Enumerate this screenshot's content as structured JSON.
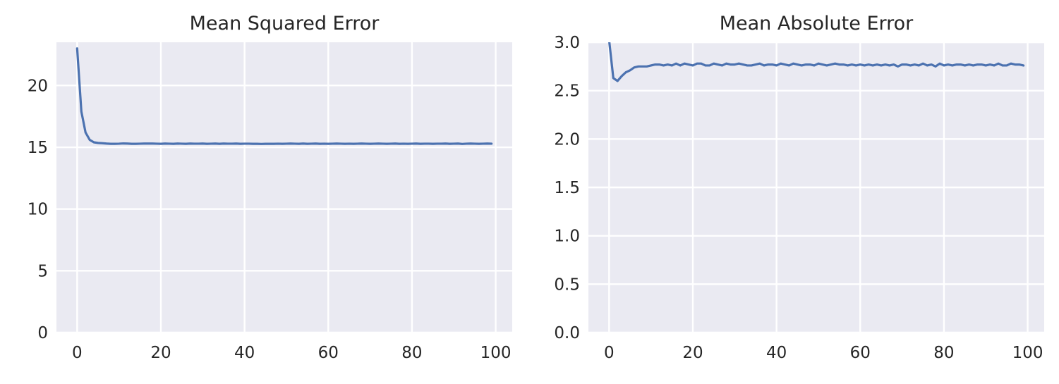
{
  "chart_data": [
    {
      "type": "line",
      "title": "Mean Squared Error",
      "xlabel": "",
      "ylabel": "",
      "xlim": [
        -4.95,
        103.95
      ],
      "ylim": [
        0,
        23.5
      ],
      "xticks": [
        0,
        20,
        40,
        60,
        80,
        100
      ],
      "xtick_labels": [
        "0",
        "20",
        "40",
        "60",
        "80",
        "100"
      ],
      "yticks": [
        0,
        5,
        10,
        15,
        20
      ],
      "ytick_labels": [
        "0",
        "5",
        "10",
        "15",
        "20"
      ],
      "grid": true,
      "series": [
        {
          "x": [
            0,
            1,
            2,
            3,
            4,
            5,
            6,
            7,
            8,
            9,
            10,
            11,
            12,
            13,
            14,
            15,
            16,
            17,
            18,
            19,
            20,
            21,
            22,
            23,
            24,
            25,
            26,
            27,
            28,
            29,
            30,
            31,
            32,
            33,
            34,
            35,
            36,
            37,
            38,
            39,
            40,
            41,
            42,
            43,
            44,
            45,
            46,
            47,
            48,
            49,
            50,
            51,
            52,
            53,
            54,
            55,
            56,
            57,
            58,
            59,
            60,
            61,
            62,
            63,
            64,
            65,
            66,
            67,
            68,
            69,
            70,
            71,
            72,
            73,
            74,
            75,
            76,
            77,
            78,
            79,
            80,
            81,
            82,
            83,
            84,
            85,
            86,
            87,
            88,
            89,
            90,
            91,
            92,
            93,
            94,
            95,
            96,
            97,
            98,
            99
          ],
          "y": [
            23.0,
            17.9,
            16.2,
            15.6,
            15.4,
            15.35,
            15.33,
            15.3,
            15.28,
            15.28,
            15.29,
            15.31,
            15.3,
            15.28,
            15.28,
            15.29,
            15.3,
            15.3,
            15.3,
            15.29,
            15.28,
            15.3,
            15.29,
            15.28,
            15.3,
            15.29,
            15.28,
            15.3,
            15.29,
            15.29,
            15.3,
            15.28,
            15.29,
            15.3,
            15.28,
            15.3,
            15.29,
            15.29,
            15.3,
            15.28,
            15.29,
            15.29,
            15.28,
            15.28,
            15.27,
            15.28,
            15.28,
            15.28,
            15.29,
            15.28,
            15.29,
            15.3,
            15.29,
            15.28,
            15.3,
            15.28,
            15.29,
            15.3,
            15.28,
            15.29,
            15.28,
            15.29,
            15.3,
            15.29,
            15.28,
            15.29,
            15.28,
            15.29,
            15.3,
            15.29,
            15.28,
            15.29,
            15.3,
            15.29,
            15.28,
            15.29,
            15.3,
            15.28,
            15.29,
            15.28,
            15.29,
            15.3,
            15.28,
            15.29,
            15.29,
            15.28,
            15.29,
            15.29,
            15.3,
            15.28,
            15.29,
            15.3,
            15.27,
            15.29,
            15.3,
            15.29,
            15.28,
            15.29,
            15.3,
            15.29
          ]
        }
      ]
    },
    {
      "type": "line",
      "title": "Mean Absolute Error",
      "xlabel": "",
      "ylabel": "",
      "xlim": [
        -4.95,
        103.95
      ],
      "ylim": [
        0,
        3.0
      ],
      "xticks": [
        0,
        20,
        40,
        60,
        80,
        100
      ],
      "xtick_labels": [
        "0",
        "20",
        "40",
        "60",
        "80",
        "100"
      ],
      "yticks": [
        0,
        0.5,
        1.0,
        1.5,
        2.0,
        2.5,
        3.0
      ],
      "ytick_labels": [
        "0.0",
        "0.5",
        "1.0",
        "1.5",
        "2.0",
        "2.5",
        "3.0"
      ],
      "grid": true,
      "series": [
        {
          "x": [
            0,
            1,
            2,
            3,
            4,
            5,
            6,
            7,
            8,
            9,
            10,
            11,
            12,
            13,
            14,
            15,
            16,
            17,
            18,
            19,
            20,
            21,
            22,
            23,
            24,
            25,
            26,
            27,
            28,
            29,
            30,
            31,
            32,
            33,
            34,
            35,
            36,
            37,
            38,
            39,
            40,
            41,
            42,
            43,
            44,
            45,
            46,
            47,
            48,
            49,
            50,
            51,
            52,
            53,
            54,
            55,
            56,
            57,
            58,
            59,
            60,
            61,
            62,
            63,
            64,
            65,
            66,
            67,
            68,
            69,
            70,
            71,
            72,
            73,
            74,
            75,
            76,
            77,
            78,
            79,
            80,
            81,
            82,
            83,
            84,
            85,
            86,
            87,
            88,
            89,
            90,
            91,
            92,
            93,
            94,
            95,
            96,
            97,
            98,
            99
          ],
          "y": [
            3.02,
            2.63,
            2.6,
            2.65,
            2.69,
            2.71,
            2.74,
            2.75,
            2.75,
            2.75,
            2.76,
            2.77,
            2.77,
            2.76,
            2.77,
            2.76,
            2.78,
            2.76,
            2.78,
            2.77,
            2.76,
            2.78,
            2.78,
            2.76,
            2.76,
            2.78,
            2.77,
            2.76,
            2.78,
            2.77,
            2.77,
            2.78,
            2.77,
            2.76,
            2.76,
            2.77,
            2.78,
            2.76,
            2.77,
            2.77,
            2.76,
            2.78,
            2.77,
            2.76,
            2.78,
            2.77,
            2.76,
            2.77,
            2.77,
            2.76,
            2.78,
            2.77,
            2.76,
            2.77,
            2.78,
            2.77,
            2.77,
            2.76,
            2.77,
            2.76,
            2.77,
            2.76,
            2.77,
            2.76,
            2.77,
            2.76,
            2.77,
            2.76,
            2.77,
            2.75,
            2.77,
            2.77,
            2.76,
            2.77,
            2.76,
            2.78,
            2.76,
            2.77,
            2.75,
            2.78,
            2.76,
            2.77,
            2.76,
            2.77,
            2.77,
            2.76,
            2.77,
            2.76,
            2.77,
            2.77,
            2.76,
            2.77,
            2.76,
            2.78,
            2.76,
            2.76,
            2.78,
            2.77,
            2.77,
            2.76
          ]
        }
      ]
    }
  ]
}
